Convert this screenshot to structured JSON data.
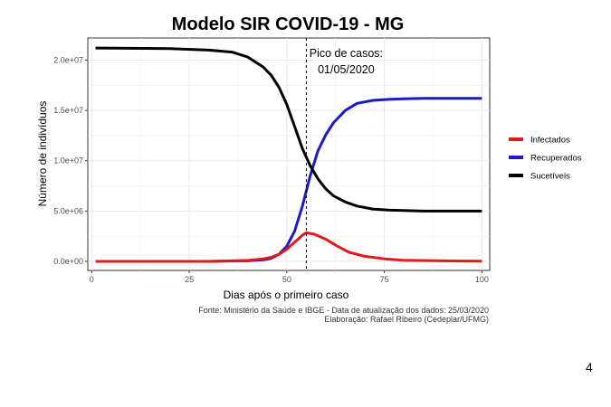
{
  "page_number": "4",
  "chart_data": {
    "type": "line",
    "title": "Modelo SIR COVID-19 - MG",
    "xlabel": "Dias após o primeiro caso",
    "ylabel": "Número de indivíduos",
    "xlim": [
      -1,
      102
    ],
    "ylim": [
      -900000,
      22200000
    ],
    "x_ticks": [
      0,
      25,
      50,
      75,
      100
    ],
    "x_tick_labels": [
      "0",
      "25",
      "50",
      "75",
      "100"
    ],
    "y_ticks": [
      0,
      5000000,
      10000000,
      15000000,
      20000000
    ],
    "y_tick_labels": [
      "0.0e+00",
      "5.0e+06",
      "1.0e+07",
      "1.5e+07",
      "2.0e+07"
    ],
    "grid": true,
    "legend_position": "right",
    "vline": {
      "x": 55,
      "label_line1": "Pico de casos:",
      "label_line2": "01/05/2020"
    },
    "series": [
      {
        "name": "Infectados",
        "color": "#e31a1c",
        "x": [
          1,
          30,
          40,
          44,
          46,
          48,
          50,
          52,
          54,
          55,
          57,
          60,
          63,
          66,
          70,
          75,
          80,
          90,
          100
        ],
        "y": [
          0,
          0,
          100000,
          250000,
          400000,
          700000,
          1200000,
          1900000,
          2600000,
          2850000,
          2700000,
          2200000,
          1500000,
          900000,
          500000,
          250000,
          120000,
          50000,
          20000
        ]
      },
      {
        "name": "Recuperados",
        "color": "#1a1ac8",
        "x": [
          1,
          30,
          40,
          44,
          46,
          48,
          50,
          52,
          54,
          56,
          58,
          60,
          62,
          65,
          68,
          72,
          76,
          80,
          85,
          90,
          100
        ],
        "y": [
          0,
          0,
          50000,
          150000,
          300000,
          700000,
          1500000,
          3000000,
          5500000,
          8500000,
          11000000,
          12600000,
          13800000,
          15000000,
          15700000,
          16000000,
          16100000,
          16150000,
          16200000,
          16200000,
          16200000
        ]
      },
      {
        "name": "Sucetíveis",
        "color": "#000000",
        "x": [
          1,
          20,
          30,
          36,
          40,
          44,
          46,
          48,
          50,
          52,
          54,
          56,
          58,
          60,
          62,
          65,
          68,
          72,
          76,
          80,
          85,
          90,
          100
        ],
        "y": [
          21200000,
          21150000,
          21000000,
          20800000,
          20300000,
          19300000,
          18500000,
          17300000,
          15600000,
          13400000,
          11200000,
          9500000,
          8200000,
          7200000,
          6500000,
          5900000,
          5500000,
          5200000,
          5100000,
          5050000,
          5000000,
          5000000,
          5000000
        ]
      }
    ],
    "caption_line1": "Fonte: Ministério da Saúde e IBGE - Data de atualização dos dados: 25/03/2020",
    "caption_line2": "Elaboração: Rafael Ribeiro (Cedeplar/UFMG)"
  }
}
